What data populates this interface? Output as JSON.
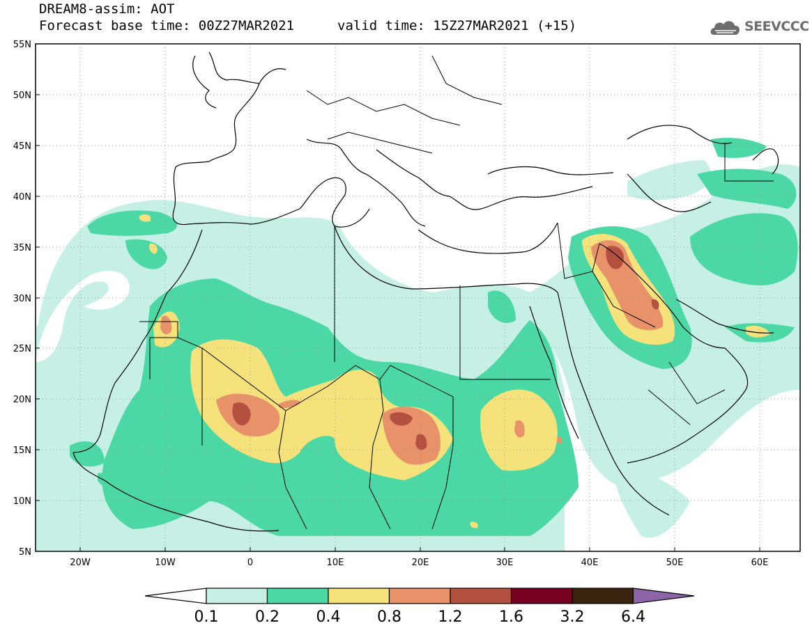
{
  "header": {
    "title_line1": "DREAM8-assim: AOT",
    "base_time": "Forecast base time: 00Z27MAR2021",
    "valid_time": "valid time: 15Z27MAR2021 (+15)",
    "logo_text": "SEEVCCC"
  },
  "map": {
    "lat_labels": [
      "55N",
      "50N",
      "45N",
      "40N",
      "35N",
      "30N",
      "25N",
      "20N",
      "15N",
      "10N",
      "5N"
    ],
    "lon_labels": [
      "20W",
      "10W",
      "0",
      "10E",
      "20E",
      "30E",
      "40E",
      "50E",
      "60E"
    ],
    "extent": {
      "lon_min": -25,
      "lon_max": 65,
      "lat_min": 5,
      "lat_max": 55
    },
    "variable": "AOT"
  },
  "colorbar": {
    "labels": [
      "0.1",
      "0.2",
      "0.4",
      "0.8",
      "1.2",
      "1.6",
      "3.2",
      "6.4"
    ],
    "colors": [
      "#ffffff",
      "#c6f0e6",
      "#4bd8a5",
      "#f6e27a",
      "#e8926a",
      "#b45040",
      "#7a0020",
      "#3a2410",
      "#8e64a8"
    ]
  }
}
